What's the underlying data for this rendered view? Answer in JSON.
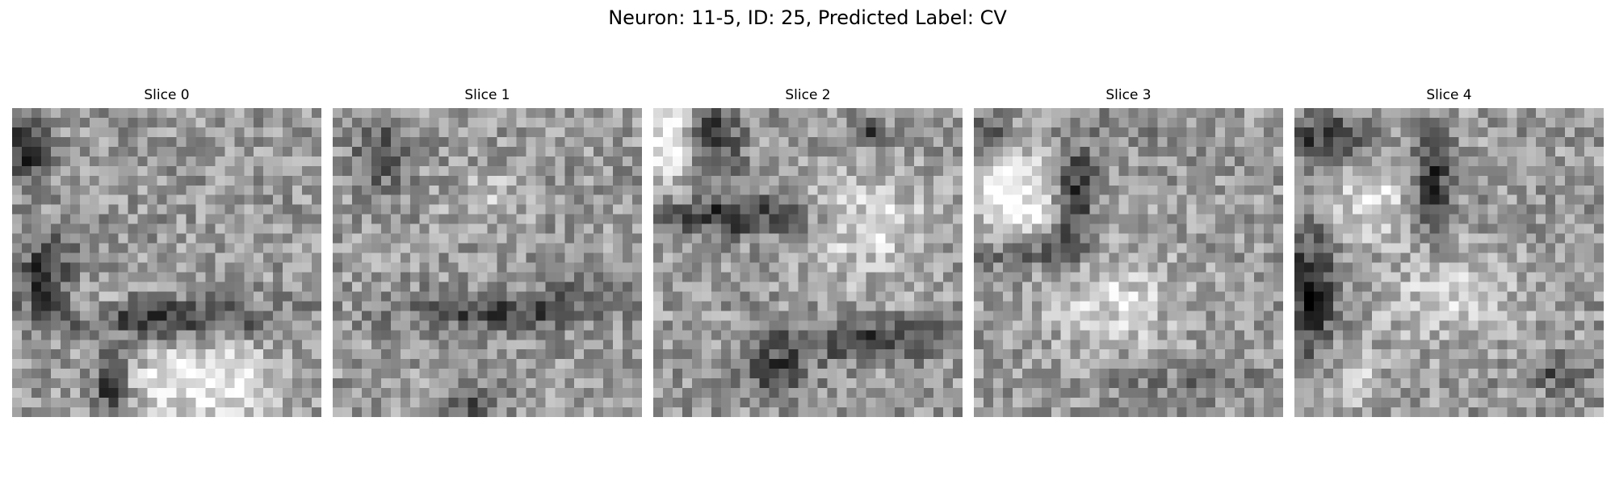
{
  "title": "Neuron: 11-5, ID: 25, Predicted Label: CV",
  "colormap": "gray",
  "slices": [
    {
      "label": "Slice 0"
    },
    {
      "label": "Slice 1"
    },
    {
      "label": "Slice 2"
    },
    {
      "label": "Slice 3"
    },
    {
      "label": "Slice 4"
    }
  ]
}
